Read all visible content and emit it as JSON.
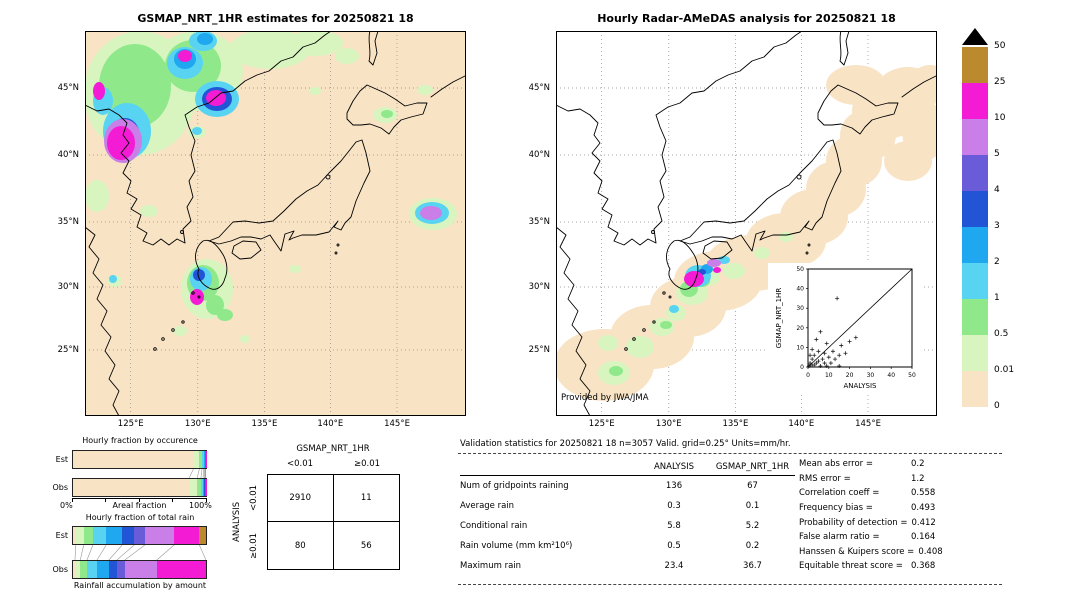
{
  "left_map": {
    "title": "GSMAP_NRT_1HR estimates for 20250821 18",
    "x_ticks": [
      "125°E",
      "130°E",
      "135°E",
      "140°E",
      "145°E"
    ],
    "y_ticks": [
      "45°N",
      "40°N",
      "35°N",
      "30°N",
      "25°N"
    ]
  },
  "right_map": {
    "title": "Hourly Radar-AMeDAS analysis for 20250821 18",
    "x_ticks": [
      "125°E",
      "130°E",
      "135°E",
      "140°E",
      "145°E"
    ],
    "y_ticks": [
      "45°N",
      "40°N",
      "35°N",
      "30°N",
      "25°N"
    ],
    "credit": "Provided by JWA/JMA",
    "inset": {
      "xlabel": "ANALYSIS",
      "ylabel": "GSMAP_NRT_1HR",
      "x_ticks": [
        "0",
        "10",
        "20",
        "30",
        "40",
        "50"
      ],
      "y_ticks": [
        "0",
        "10",
        "20",
        "30",
        "40",
        "50"
      ],
      "points": [
        [
          0.5,
          0.5
        ],
        [
          1,
          2
        ],
        [
          1,
          6
        ],
        [
          2,
          1
        ],
        [
          2,
          4
        ],
        [
          2,
          9
        ],
        [
          3,
          1
        ],
        [
          3,
          6
        ],
        [
          4,
          2
        ],
        [
          4,
          14
        ],
        [
          5,
          3
        ],
        [
          5,
          8
        ],
        [
          6,
          0.5
        ],
        [
          6,
          18
        ],
        [
          7,
          4
        ],
        [
          8,
          2
        ],
        [
          8,
          7
        ],
        [
          9,
          0.5
        ],
        [
          9,
          12
        ],
        [
          10,
          5
        ],
        [
          11,
          2
        ],
        [
          12,
          8
        ],
        [
          13,
          4
        ],
        [
          14,
          35
        ],
        [
          15,
          0.5
        ],
        [
          15,
          6
        ],
        [
          16,
          11
        ],
        [
          18,
          7
        ],
        [
          20,
          13
        ],
        [
          23,
          15
        ]
      ]
    }
  },
  "colorbar": {
    "labels": [
      "50",
      "25",
      "10",
      "5",
      "4",
      "3",
      "2",
      "1",
      "0.5",
      "0.01",
      "0"
    ],
    "palette_low_to_high": [
      "#f8e3c5",
      "#d8f5c0",
      "#8fe98b",
      "#59d3f2",
      "#1fa7f0",
      "#2255d6",
      "#6a5cd8",
      "#c97ee8",
      "#f31bd3",
      "#bb8a2e"
    ],
    "overflow_color": "#000000"
  },
  "occurrence_block": {
    "title": "Hourly fraction by occurence",
    "row_labels": [
      "Est",
      "Obs"
    ],
    "axis": {
      "left_label": "0%",
      "right_label": "100%",
      "title": "Areal fraction"
    },
    "est_segments": [
      [
        0,
        90.5
      ],
      [
        1,
        4.5
      ],
      [
        2,
        2
      ],
      [
        3,
        1.2
      ],
      [
        4,
        0.8
      ],
      [
        5,
        0.4
      ],
      [
        6,
        0.3
      ],
      [
        7,
        0.2
      ],
      [
        8,
        0.1
      ]
    ],
    "obs_segments": [
      [
        0,
        87.4
      ],
      [
        1,
        6
      ],
      [
        2,
        2.8
      ],
      [
        3,
        1.6
      ],
      [
        4,
        1
      ],
      [
        5,
        0.5
      ],
      [
        6,
        0.4
      ],
      [
        7,
        0.2
      ],
      [
        8,
        0.1
      ]
    ]
  },
  "totalrain_block": {
    "title": "Hourly fraction of total rain",
    "row_labels": [
      "Est",
      "Obs"
    ],
    "footer": "Rainfall accumulation by amount",
    "est_segments": [
      [
        0,
        2
      ],
      [
        1,
        6
      ],
      [
        2,
        7
      ],
      [
        3,
        10
      ],
      [
        4,
        12
      ],
      [
        5,
        9
      ],
      [
        6,
        8
      ],
      [
        7,
        22
      ],
      [
        8,
        19
      ],
      [
        9,
        5
      ]
    ],
    "obs_segments": [
      [
        0,
        1.5
      ],
      [
        1,
        4
      ],
      [
        2,
        5
      ],
      [
        3,
        7.5
      ],
      [
        4,
        9
      ],
      [
        5,
        6
      ],
      [
        6,
        6
      ],
      [
        7,
        24
      ],
      [
        8,
        37
      ]
    ]
  },
  "contingency": {
    "title": "GSMAP_NRT_1HR",
    "col_headers": [
      "<0.01",
      "≥0.01"
    ],
    "row_axis_label": "ANALYSIS",
    "row_headers": [
      "<0.01",
      "≥0.01"
    ],
    "cells": [
      [
        "2910",
        "11"
      ],
      [
        "80",
        "56"
      ]
    ]
  },
  "stats": {
    "header": "Validation statistics for 20250821 18  n=3057 Valid. grid=0.25° Units=mm/hr.",
    "table": {
      "col_headers": [
        "ANALYSIS",
        "GSMAP_NRT_1HR"
      ],
      "rows": [
        {
          "label": "Num of gridpoints raining",
          "analysis": "136",
          "gsmap": "67"
        },
        {
          "label": "Average rain",
          "analysis": "0.3",
          "gsmap": "0.1"
        },
        {
          "label": "Conditional rain",
          "analysis": "5.8",
          "gsmap": "5.2"
        },
        {
          "label": "Rain volume (mm km²10⁶)",
          "analysis": "0.5",
          "gsmap": "0.2"
        },
        {
          "label": "Maximum rain",
          "analysis": "23.4",
          "gsmap": "36.7"
        }
      ]
    },
    "metrics": [
      {
        "label": "Mean abs error =",
        "value": "0.2"
      },
      {
        "label": "RMS error =",
        "value": "1.2"
      },
      {
        "label": "Correlation coeff =",
        "value": "0.558"
      },
      {
        "label": "Frequency bias =",
        "value": "0.493"
      },
      {
        "label": "Probability of detection =",
        "value": "0.412"
      },
      {
        "label": "False alarm ratio =",
        "value": "0.164"
      },
      {
        "label": "Hanssen & Kuipers score =",
        "value": "0.408"
      },
      {
        "label": "Equitable threat score =",
        "value": "0.368"
      }
    ]
  },
  "chart_data": [
    {
      "type": "heatmap",
      "title": "GSMAP_NRT_1HR estimates for 20250821 18",
      "units": "mm/hr",
      "x_ticks": [
        "125°E",
        "130°E",
        "135°E",
        "140°E",
        "145°E"
      ],
      "y_ticks": [
        "45°N",
        "40°N",
        "35°N",
        "30°N",
        "25°N"
      ],
      "color_levels": [
        0,
        0.01,
        0.5,
        1,
        2,
        3,
        4,
        5,
        10,
        25,
        50
      ],
      "legend_position": "right"
    },
    {
      "type": "heatmap",
      "title": "Hourly Radar-AMeDAS analysis for 20250821 18",
      "units": "mm/hr",
      "x_ticks": [
        "125°E",
        "130°E",
        "135°E",
        "140°E",
        "145°E"
      ],
      "y_ticks": [
        "45°N",
        "40°N",
        "35°N",
        "30°N",
        "25°N"
      ],
      "color_levels": [
        0,
        0.01,
        0.5,
        1,
        2,
        3,
        4,
        5,
        10,
        25,
        50
      ],
      "annotation": "Provided by JWA/JMA"
    },
    {
      "type": "scatter",
      "title": "GSMAP_NRT_1HR vs ANALYSIS (inset)",
      "xlabel": "ANALYSIS",
      "ylabel": "GSMAP_NRT_1HR",
      "xlim": [
        0,
        50
      ],
      "ylim": [
        0,
        50
      ],
      "x_ticks": [
        0,
        10,
        20,
        30,
        40,
        50
      ],
      "y_ticks": [
        0,
        10,
        20,
        30,
        40,
        50
      ],
      "points": [
        [
          0.5,
          0.5
        ],
        [
          1,
          2
        ],
        [
          1,
          6
        ],
        [
          2,
          1
        ],
        [
          2,
          4
        ],
        [
          2,
          9
        ],
        [
          3,
          1
        ],
        [
          3,
          6
        ],
        [
          4,
          2
        ],
        [
          4,
          14
        ],
        [
          5,
          3
        ],
        [
          5,
          8
        ],
        [
          6,
          0.5
        ],
        [
          6,
          18
        ],
        [
          7,
          4
        ],
        [
          8,
          2
        ],
        [
          8,
          7
        ],
        [
          9,
          0.5
        ],
        [
          9,
          12
        ],
        [
          10,
          5
        ],
        [
          11,
          2
        ],
        [
          12,
          8
        ],
        [
          13,
          4
        ],
        [
          14,
          35
        ],
        [
          15,
          0.5
        ],
        [
          15,
          6
        ],
        [
          16,
          11
        ],
        [
          18,
          7
        ],
        [
          20,
          13
        ],
        [
          23,
          15
        ]
      ]
    },
    {
      "type": "table",
      "title": "Contingency table (gridpoints, ANALYSIS rows × GSMAP_NRT_1HR cols)",
      "columns": [
        "<0.01",
        "≥0.01"
      ],
      "rows": [
        {
          "label": "<0.01",
          "values": [
            2910,
            11
          ]
        },
        {
          "label": "≥0.01",
          "values": [
            80,
            56
          ]
        }
      ]
    },
    {
      "type": "table",
      "title": "Validation statistics for 20250821 18",
      "n": 3057,
      "grid": "0.25°",
      "units": "mm/hr",
      "columns": [
        "ANALYSIS",
        "GSMAP_NRT_1HR"
      ],
      "rows": [
        [
          "Num of gridpoints raining",
          136,
          67
        ],
        [
          "Average rain",
          0.3,
          0.1
        ],
        [
          "Conditional rain",
          5.8,
          5.2
        ],
        [
          "Rain volume (mm km²10⁶)",
          0.5,
          0.2
        ],
        [
          "Maximum rain",
          23.4,
          36.7
        ]
      ],
      "scores": {
        "Mean abs error": 0.2,
        "RMS error": 1.2,
        "Correlation coeff": 0.558,
        "Frequency bias": 0.493,
        "Probability of detection": 0.412,
        "False alarm ratio": 0.164,
        "Hanssen & Kuipers score": 0.408,
        "Equitable threat score": 0.368
      }
    },
    {
      "type": "bar",
      "title": "Hourly fraction by occurence",
      "orientation": "horizontal-stacked",
      "categories": [
        "Est",
        "Obs"
      ],
      "xlabel": "Areal fraction",
      "xlim_pct": [
        0,
        100
      ],
      "class_bins": [
        "<0.01",
        "0.01-0.5",
        "0.5-1",
        "1-2",
        "2-3",
        "3-4",
        "4-5",
        "5-10",
        "10-25",
        "25-50"
      ],
      "series": [
        {
          "name": "Est",
          "values": [
            90.5,
            4.5,
            2,
            1.2,
            0.8,
            0.4,
            0.3,
            0.2,
            0.1,
            0
          ]
        },
        {
          "name": "Obs",
          "values": [
            87.4,
            6,
            2.8,
            1.6,
            1,
            0.5,
            0.4,
            0.2,
            0.1,
            0
          ]
        }
      ]
    },
    {
      "type": "bar",
      "title": "Hourly fraction of total rain",
      "orientation": "horizontal-stacked",
      "categories": [
        "Est",
        "Obs"
      ],
      "footer": "Rainfall accumulation by amount",
      "class_bins": [
        "<0.01",
        "0.01-0.5",
        "0.5-1",
        "1-2",
        "2-3",
        "3-4",
        "4-5",
        "5-10",
        "10-25",
        "25-50"
      ],
      "series": [
        {
          "name": "Est",
          "values": [
            2,
            6,
            7,
            10,
            12,
            9,
            8,
            22,
            19,
            5
          ]
        },
        {
          "name": "Obs",
          "values": [
            1.5,
            4,
            5,
            7.5,
            9,
            6,
            6,
            24,
            37,
            0
          ]
        }
      ]
    }
  ]
}
